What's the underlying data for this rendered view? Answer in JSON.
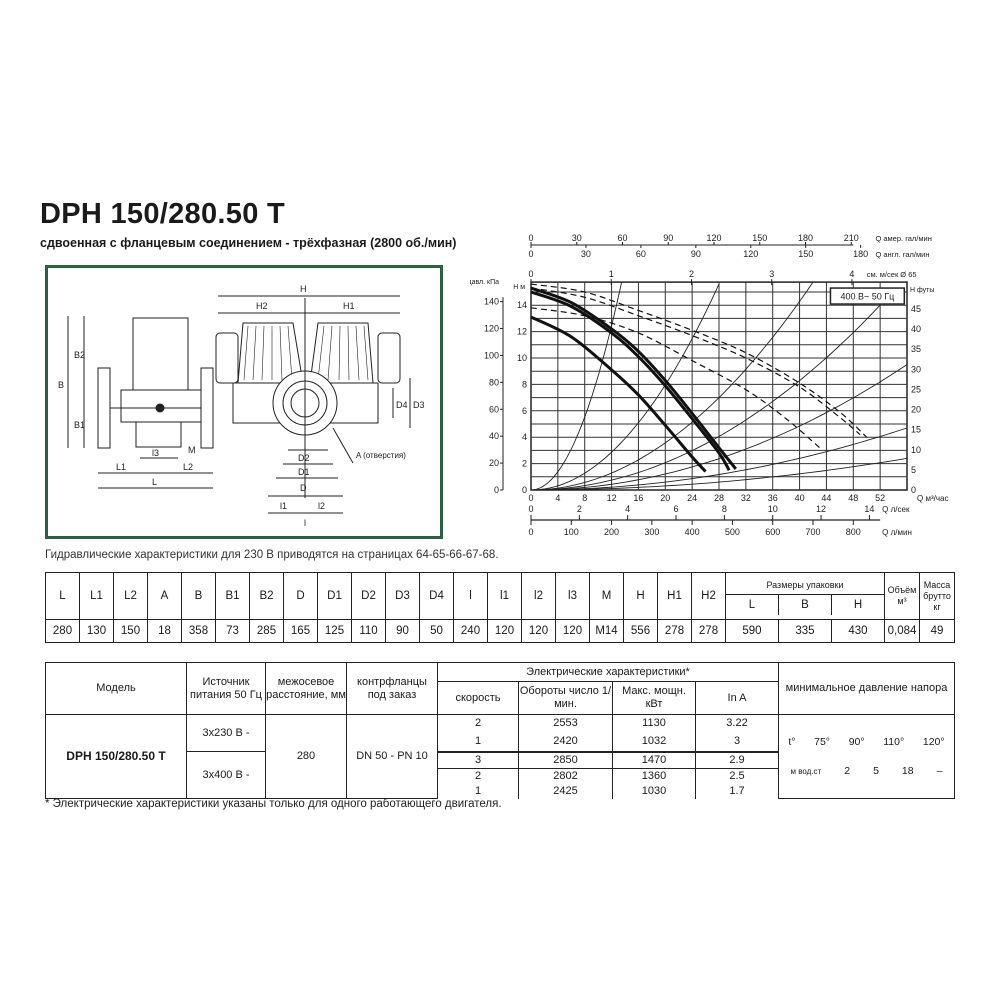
{
  "title": "DPH 150/280.50 T",
  "subtitle": "сдвоенная с фланцевым соединением - трёхфазная (2800 об./мин)",
  "drawing": {
    "labels": {
      "H": "H",
      "H1": "H1",
      "H2": "H2",
      "B": "B",
      "B1": "B1",
      "B2": "B2",
      "L": "L",
      "L1": "L1",
      "L2": "L2",
      "l": "l",
      "l1": "l1",
      "l2": "l2",
      "l3": "l3",
      "M": "M",
      "D": "D",
      "D1": "D1",
      "D2": "D2",
      "D3": "D3",
      "D4": "D4",
      "A": "A (отверстия)"
    }
  },
  "hydraulic_note": "Гидравлические характеристики для 230 В приводятся на страницах 64-65-66-67-68.",
  "chart_data": {
    "type": "line",
    "badge": "400 В~ 50 Гц",
    "xlabel": "Q м³/час",
    "ylabel_left_outer": "давл. кПа",
    "ylabel_left": "H м",
    "ylabel_right": "H футы",
    "xlim": [
      0,
      56
    ],
    "ylim": [
      0,
      15.75
    ],
    "grid": true,
    "x_ticks": [
      0,
      4,
      8,
      12,
      16,
      20,
      24,
      28,
      32,
      36,
      40,
      44,
      48,
      52
    ],
    "y_ticks": [
      0,
      2,
      4,
      6,
      8,
      10,
      12,
      14
    ],
    "kpa_ticks": [
      0,
      20,
      40,
      60,
      80,
      100,
      120,
      140
    ],
    "ft_ticks": [
      0,
      5,
      10,
      15,
      20,
      25,
      30,
      35,
      40,
      45
    ],
    "top_axes": [
      {
        "label": "Q амер. гал/мин",
        "ticks": [
          0,
          30,
          60,
          90,
          120,
          150,
          180,
          210
        ]
      },
      {
        "label": "Q англ. гал/мин",
        "ticks": [
          0,
          30,
          60,
          90,
          120,
          150,
          180
        ]
      },
      {
        "label": "см. м/сек Ø 65",
        "ticks": [
          0,
          1,
          2,
          3,
          4
        ]
      }
    ],
    "bottom_axes": [
      {
        "label": "Q л/сек",
        "ticks": [
          0,
          2,
          4,
          6,
          8,
          10,
          12,
          14
        ]
      },
      {
        "label": "Q л/мин",
        "ticks": [
          0,
          100,
          200,
          300,
          400,
          500,
          600,
          700,
          800
        ]
      }
    ],
    "series": [
      {
        "style": "solid-bold",
        "points": [
          [
            0,
            15.3
          ],
          [
            6,
            14.2
          ],
          [
            12,
            12.2
          ],
          [
            16,
            10.5
          ],
          [
            20,
            8.3
          ],
          [
            24,
            5.8
          ],
          [
            28,
            3.2
          ],
          [
            30.5,
            1.6
          ]
        ]
      },
      {
        "style": "solid-bold",
        "points": [
          [
            0,
            15.0
          ],
          [
            6,
            13.9
          ],
          [
            12,
            11.9
          ],
          [
            16,
            10.1
          ],
          [
            20,
            7.9
          ],
          [
            24,
            5.4
          ],
          [
            28,
            2.8
          ],
          [
            29.5,
            1.5
          ]
        ]
      },
      {
        "style": "solid-bold",
        "points": [
          [
            0,
            13.1
          ],
          [
            6,
            11.6
          ],
          [
            12,
            9.1
          ],
          [
            16,
            7.2
          ],
          [
            20,
            4.9
          ],
          [
            24,
            2.5
          ],
          [
            26,
            1.4
          ]
        ]
      },
      {
        "style": "dashed",
        "points": [
          [
            0,
            15.6
          ],
          [
            8,
            15.0
          ],
          [
            16,
            13.6
          ],
          [
            24,
            12.1
          ],
          [
            32,
            10.4
          ],
          [
            40,
            8.1
          ],
          [
            46,
            5.9
          ],
          [
            50,
            4.0
          ]
        ]
      },
      {
        "style": "dashed",
        "points": [
          [
            0,
            15.3
          ],
          [
            8,
            14.6
          ],
          [
            16,
            13.2
          ],
          [
            24,
            11.7
          ],
          [
            32,
            10.0
          ],
          [
            40,
            7.8
          ],
          [
            46,
            5.5
          ],
          [
            49,
            4.2
          ]
        ]
      },
      {
        "style": "dashed",
        "points": [
          [
            0,
            13.8
          ],
          [
            8,
            13.2
          ],
          [
            16,
            11.9
          ],
          [
            24,
            9.8
          ],
          [
            32,
            7.6
          ],
          [
            38,
            5.4
          ],
          [
            43,
            3.2
          ]
        ]
      }
    ],
    "system_curves": [
      [
        [
          0,
          0
        ],
        [
          13.5,
          15.75
        ]
      ],
      [
        [
          0,
          0
        ],
        [
          28,
          15.6
        ]
      ],
      [
        [
          0,
          0
        ],
        [
          42,
          15.75
        ]
      ],
      [
        [
          0,
          0
        ],
        [
          52,
          14
        ]
      ],
      [
        [
          0,
          0
        ],
        [
          56,
          9.5
        ]
      ],
      [
        [
          0,
          0
        ],
        [
          56,
          4.7
        ]
      ],
      [
        [
          0,
          0
        ],
        [
          56,
          2.4
        ]
      ]
    ]
  },
  "dimensions_table": {
    "headers": [
      "L",
      "L1",
      "L2",
      "A",
      "B",
      "B1",
      "B2",
      "D",
      "D1",
      "D2",
      "D3",
      "D4",
      "l",
      "l1",
      "l2",
      "l3",
      "M",
      "H",
      "H1",
      "H2"
    ],
    "packaging_header": "Размеры упаковки",
    "packaging_sub": [
      "L",
      "B",
      "H"
    ],
    "volume_header": "Объём м³",
    "mass_header": "Масса брутто кг",
    "values": [
      "280",
      "130",
      "150",
      "18",
      "358",
      "73",
      "285",
      "165",
      "125",
      "110",
      "90",
      "50",
      "240",
      "120",
      "120",
      "120",
      "M14",
      "556",
      "278",
      "278",
      "590",
      "335",
      "430",
      "0,084",
      "49"
    ]
  },
  "electrical_table": {
    "headers": {
      "model": "Модель",
      "supply": "Источник питания 50 Гц",
      "distance": "межосевое расстояние, мм",
      "flanges": "контрфланцы под заказ",
      "electrical": "Электрические характеристики*",
      "speed": "скорость",
      "rpm": "Обороты число 1/мин.",
      "power": "Макс. мощн. кВт",
      "current": "In A",
      "min_pressure": "минимальное давление напора"
    },
    "model": "DPH 150/280.50 T",
    "supplies": [
      "3x230 В -",
      "3x400 В -"
    ],
    "distance": "280",
    "flanges": "DN 50 - PN 10",
    "rows": [
      {
        "speed": "2",
        "rpm": "2553",
        "power": "1130",
        "current": "3.22"
      },
      {
        "speed": "1",
        "rpm": "2420",
        "power": "1032",
        "current": "3"
      },
      {
        "speed": "3",
        "rpm": "2850",
        "power": "1470",
        "current": "2.9"
      },
      {
        "speed": "2",
        "rpm": "2802",
        "power": "1360",
        "current": "2.5"
      },
      {
        "speed": "1",
        "rpm": "2425",
        "power": "1030",
        "current": "1.7"
      }
    ],
    "pressure_temps": [
      "t°",
      "75°",
      "90°",
      "110°",
      "120°"
    ],
    "pressure_values": [
      "м вод.ст",
      "2",
      "5",
      "18",
      "–"
    ]
  },
  "footnote": "* Электрические характеристики указаны только для одного работающего двигателя."
}
